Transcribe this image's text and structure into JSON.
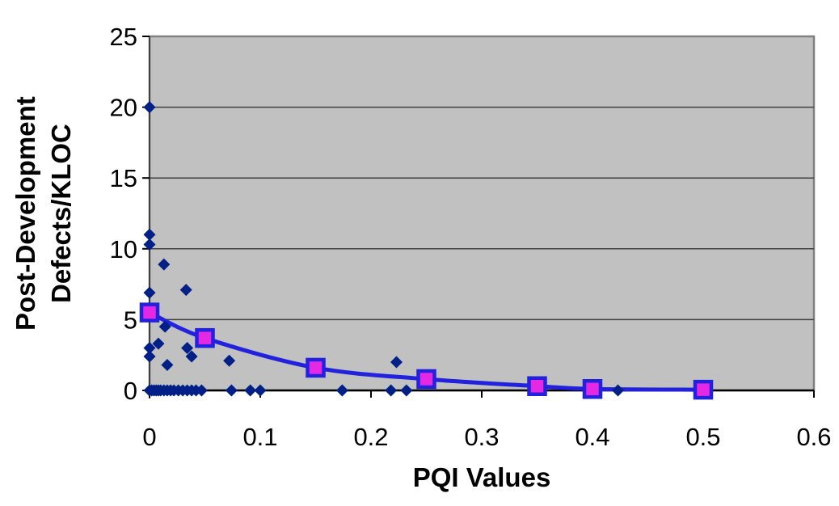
{
  "chart_data": {
    "type": "scatter",
    "title": "",
    "xlabel": "PQI Values",
    "ylabel": "Post-Development Defects/KLOC",
    "ylabel_lines": [
      "Post-Development",
      "Defects/KLOC"
    ],
    "xlim": [
      0,
      0.6
    ],
    "ylim": [
      0,
      25
    ],
    "xticks": [
      0,
      0.1,
      0.2,
      0.3,
      0.4,
      0.5,
      0.6
    ],
    "xtick_labels": [
      "0",
      "0.1",
      "0.2",
      "0.3",
      "0.4",
      "0.5",
      "0.6"
    ],
    "yticks": [
      0,
      5,
      10,
      15,
      20,
      25
    ],
    "ytick_labels": [
      "0",
      "5",
      "10",
      "15",
      "20",
      "25"
    ],
    "grid": "horizontal",
    "legend": "none",
    "plot_background": "#C1C1C1",
    "plot_border_color": "#808080",
    "gridline_color": "#404040",
    "axis_color": "#000000",
    "series": [
      {
        "name": "scatter-defects",
        "type": "scatter",
        "marker": "diamond",
        "color": "#001F87",
        "points": [
          [
            0,
            20
          ],
          [
            0,
            11
          ],
          [
            0,
            10.3
          ],
          [
            0.013,
            8.9
          ],
          [
            0.033,
            7.1
          ],
          [
            0,
            6.9
          ],
          [
            0.014,
            4.5
          ],
          [
            0.008,
            3.3
          ],
          [
            0,
            3.0
          ],
          [
            0.034,
            3.0
          ],
          [
            0,
            2.4
          ],
          [
            0.038,
            2.4
          ],
          [
            0.016,
            1.8
          ],
          [
            0.072,
            2.1
          ],
          [
            0.223,
            2.0
          ],
          [
            0,
            0
          ],
          [
            0.002,
            0
          ],
          [
            0.004,
            0
          ],
          [
            0.006,
            0
          ],
          [
            0.008,
            0
          ],
          [
            0.01,
            0
          ],
          [
            0.013,
            0
          ],
          [
            0.016,
            0
          ],
          [
            0.019,
            0
          ],
          [
            0.022,
            0
          ],
          [
            0.026,
            0
          ],
          [
            0.03,
            0
          ],
          [
            0.034,
            0
          ],
          [
            0.038,
            0
          ],
          [
            0.042,
            0
          ],
          [
            0.047,
            0
          ],
          [
            0.074,
            0
          ],
          [
            0.091,
            0
          ],
          [
            0.1,
            0
          ],
          [
            0.174,
            0
          ],
          [
            0.218,
            0
          ],
          [
            0.232,
            0
          ],
          [
            0.423,
            0
          ]
        ]
      },
      {
        "name": "trend-line",
        "type": "line",
        "smooth": true,
        "marker": "square",
        "line_color": "#2121DE",
        "marker_fill": "#E428E4",
        "marker_border": "#2121DE",
        "points": [
          [
            0,
            5.5
          ],
          [
            0.05,
            3.7
          ],
          [
            0.15,
            1.6
          ],
          [
            0.25,
            0.8
          ],
          [
            0.35,
            0.3
          ],
          [
            0.4,
            0.1
          ],
          [
            0.5,
            0.05
          ]
        ]
      }
    ]
  }
}
